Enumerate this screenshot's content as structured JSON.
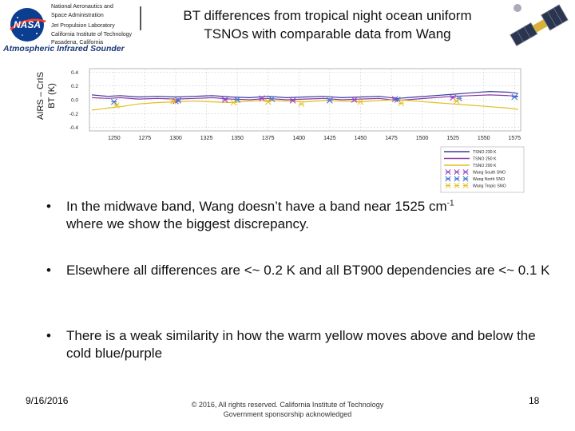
{
  "header": {
    "org_lines": [
      "National Aeronautics and",
      "Space Administration",
      "Jet Propulsion Laboratory",
      "California Institute of Technology",
      "Pasadena, California"
    ],
    "nasa_logo_text": "NASA",
    "instrument": "Atmospheric Infrared Sounder",
    "title_line1": "BT differences from tropical night ocean uniform",
    "title_line2": "TSNOs with comparable data from Wang"
  },
  "chart_data": {
    "type": "line",
    "ylabel_line1": "AIRS – CrIS",
    "ylabel_line2": "BT (K)",
    "xlim": [
      1230,
      1580
    ],
    "ylim": [
      -0.45,
      0.45
    ],
    "xticks": [
      1250,
      1275,
      1300,
      1325,
      1350,
      1375,
      1400,
      1425,
      1450,
      1475,
      1500,
      1525,
      1550,
      1575
    ],
    "yticks": [
      0.4,
      0.2,
      0.0,
      -0.2,
      -0.4
    ],
    "ytick_labels": [
      "0.4",
      "0.2",
      "0.0",
      "-0.2",
      "-0.4"
    ],
    "legend_position": "bottom-right, below plot",
    "series": [
      {
        "name": "TSNO 230 K",
        "color": "#3a3aa0",
        "style": "line",
        "x": [
          1232,
          1245,
          1255,
          1270,
          1285,
          1300,
          1315,
          1330,
          1345,
          1360,
          1375,
          1390,
          1405,
          1420,
          1435,
          1450,
          1465,
          1480,
          1495,
          1510,
          1525,
          1540,
          1555,
          1570,
          1578
        ],
        "y": [
          0.07,
          0.05,
          0.06,
          0.04,
          0.05,
          0.04,
          0.05,
          0.06,
          0.04,
          0.03,
          0.05,
          0.03,
          0.04,
          0.05,
          0.03,
          0.04,
          0.05,
          0.02,
          0.04,
          0.06,
          0.08,
          0.1,
          0.12,
          0.11,
          0.09
        ]
      },
      {
        "name": "TSNO 250 K",
        "color": "#8a3aa0",
        "style": "line",
        "x": [
          1232,
          1245,
          1255,
          1270,
          1285,
          1300,
          1315,
          1330,
          1345,
          1360,
          1375,
          1390,
          1405,
          1420,
          1435,
          1450,
          1465,
          1480,
          1495,
          1510,
          1525,
          1540,
          1555,
          1570,
          1578
        ],
        "y": [
          0.03,
          0.02,
          0.03,
          0.01,
          0.02,
          0.01,
          0.02,
          0.03,
          0.01,
          0.0,
          0.02,
          0.0,
          0.01,
          0.02,
          0.0,
          0.01,
          0.02,
          -0.01,
          0.01,
          0.03,
          0.05,
          0.06,
          0.07,
          0.06,
          0.05
        ]
      },
      {
        "name": "TSNO 290 K",
        "color": "#e0c020",
        "style": "line",
        "x": [
          1232,
          1245,
          1255,
          1270,
          1285,
          1300,
          1315,
          1330,
          1345,
          1360,
          1375,
          1390,
          1405,
          1420,
          1435,
          1450,
          1465,
          1480,
          1495,
          1510,
          1525,
          1540,
          1555,
          1570,
          1578
        ],
        "y": [
          -0.15,
          -0.12,
          -0.1,
          -0.06,
          -0.04,
          -0.03,
          -0.02,
          -0.03,
          -0.04,
          -0.02,
          -0.01,
          -0.02,
          -0.03,
          -0.01,
          -0.02,
          -0.03,
          -0.01,
          0.0,
          -0.02,
          -0.04,
          -0.06,
          -0.08,
          -0.1,
          -0.12,
          -0.14
        ]
      },
      {
        "name": "Wang South SNO",
        "color": "#9a40c8",
        "style": "marker",
        "x": [
          1300,
          1340,
          1370,
          1395,
          1445,
          1478,
          1525
        ],
        "y": [
          -0.02,
          0.0,
          0.02,
          -0.01,
          0.0,
          0.01,
          0.03
        ]
      },
      {
        "name": "Wang North SNO",
        "color": "#3a70d0",
        "style": "marker",
        "x": [
          1250,
          1302,
          1350,
          1378,
          1425,
          1480,
          1530,
          1575
        ],
        "y": [
          -0.03,
          -0.01,
          0.0,
          0.01,
          -0.01,
          0.0,
          0.02,
          0.04
        ]
      },
      {
        "name": "Wang Tropic SNO",
        "color": "#e8c020",
        "style": "marker",
        "x": [
          1252,
          1298,
          1347,
          1375,
          1402,
          1450,
          1483,
          1528
        ],
        "y": [
          -0.08,
          -0.02,
          -0.04,
          -0.03,
          -0.06,
          -0.03,
          -0.05,
          -0.02
        ]
      }
    ]
  },
  "bullets": {
    "b1_pre": "In the midwave band, Wang doesn’t have a band near 1525 cm",
    "b1_sup": "-1",
    "b1_post": "where we show the biggest discrepancy.",
    "b2": "Elsewhere all differences are <~ 0.2 K and all BT900 dependencies are <~ 0.1 K",
    "b3": "There is a weak similarity in how the warm yellow moves above and below the cold blue/purple",
    "bullet_char": "•"
  },
  "footer": {
    "date": "9/16/2016",
    "copy_line1": "© 2016, All rights reserved. California Institute of Technology",
    "copy_line2": "Government sponsorship acknowledged",
    "page": "18"
  },
  "colors": {
    "nasa_blue": "#0b3d91",
    "nasa_red": "#fc3d21",
    "instrument_blue": "#1a3a7a"
  }
}
